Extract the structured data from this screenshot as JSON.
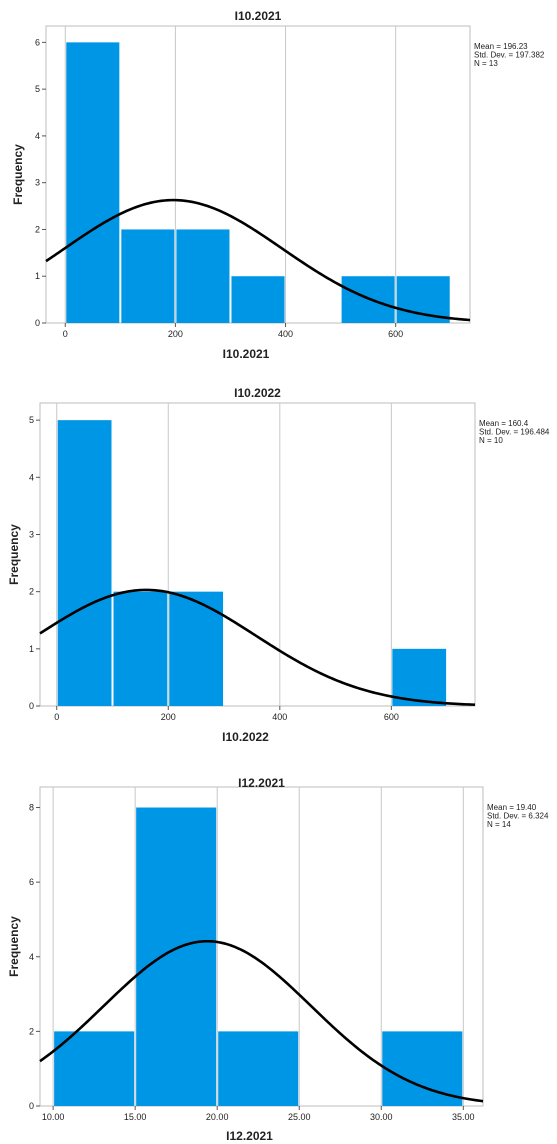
{
  "chart_data": [
    {
      "type": "histogram",
      "title": "I10.2021",
      "xlabel": "I10.2021",
      "ylabel": "Frequency",
      "xlim": [
        -35,
        735
      ],
      "ylim": [
        0,
        6.35
      ],
      "xticks": [
        0,
        200,
        400,
        600
      ],
      "xtick_labels": [
        "0",
        "200",
        "400",
        "600"
      ],
      "yticks": [
        0,
        1,
        2,
        3,
        4,
        5,
        6
      ],
      "ytick_labels": [
        "0",
        "1",
        "2",
        "3",
        "4",
        "5",
        "6"
      ],
      "bins": [
        {
          "start": 0,
          "end": 100,
          "count": 6
        },
        {
          "start": 100,
          "end": 200,
          "count": 2
        },
        {
          "start": 200,
          "end": 300,
          "count": 2
        },
        {
          "start": 300,
          "end": 400,
          "count": 1
        },
        {
          "start": 400,
          "end": 500,
          "count": 0
        },
        {
          "start": 500,
          "end": 600,
          "count": 1
        },
        {
          "start": 600,
          "end": 700,
          "count": 1
        }
      ],
      "normal_curve": {
        "mean": 196.23,
        "sd": 197.382,
        "n": 13,
        "bin_width": 100
      },
      "stats_lines": [
        "Mean = 196.23",
        "Std. Dev. = 197.382",
        "N = 13"
      ],
      "grid": true,
      "bar_color": "#0096e6",
      "curve_color": "#000000"
    },
    {
      "type": "histogram",
      "title": "I10.2022",
      "xlabel": "I10.2022",
      "ylabel": "Frequency",
      "xlim": [
        -30,
        750
      ],
      "ylim": [
        0,
        5.3
      ],
      "xticks": [
        0,
        200,
        400,
        600
      ],
      "xtick_labels": [
        "0",
        "200",
        "400",
        "600"
      ],
      "yticks": [
        0,
        1,
        2,
        3,
        4,
        5
      ],
      "ytick_labels": [
        "0",
        "1",
        "2",
        "3",
        "4",
        "5"
      ],
      "bins": [
        {
          "start": 0,
          "end": 100,
          "count": 5
        },
        {
          "start": 100,
          "end": 200,
          "count": 2
        },
        {
          "start": 200,
          "end": 300,
          "count": 2
        },
        {
          "start": 300,
          "end": 400,
          "count": 0
        },
        {
          "start": 400,
          "end": 500,
          "count": 0
        },
        {
          "start": 500,
          "end": 600,
          "count": 0
        },
        {
          "start": 600,
          "end": 700,
          "count": 1
        }
      ],
      "normal_curve": {
        "mean": 160.4,
        "sd": 196.484,
        "n": 10,
        "bin_width": 100
      },
      "stats_lines": [
        "Mean = 160.4",
        "Std. Dev. = 196.484",
        "N = 10"
      ],
      "grid": true,
      "bar_color": "#0096e6",
      "curve_color": "#000000"
    },
    {
      "type": "histogram",
      "title": "I12.2021",
      "xlabel": "I12.2021",
      "ylabel": "Frequency",
      "xlim": [
        9.2,
        36.2
      ],
      "ylim": [
        0,
        8.55
      ],
      "xticks": [
        10,
        15,
        20,
        25,
        30,
        35
      ],
      "xtick_labels": [
        "10.00",
        "15.00",
        "20.00",
        "25.00",
        "30.00",
        "35.00"
      ],
      "yticks": [
        0,
        2,
        4,
        6,
        8
      ],
      "ytick_labels": [
        "0",
        "2",
        "4",
        "6",
        "8"
      ],
      "bins": [
        {
          "start": 10,
          "end": 15,
          "count": 2
        },
        {
          "start": 15,
          "end": 20,
          "count": 8
        },
        {
          "start": 20,
          "end": 25,
          "count": 2
        },
        {
          "start": 25,
          "end": 30,
          "count": 0
        },
        {
          "start": 30,
          "end": 35,
          "count": 2
        }
      ],
      "normal_curve": {
        "mean": 19.4,
        "sd": 6.324,
        "n": 14,
        "bin_width": 5
      },
      "stats_lines": [
        "Mean = 19.40",
        "Std. Dev. = 6.324",
        "N = 14"
      ],
      "grid": true,
      "bar_color": "#0096e6",
      "curve_color": "#000000"
    }
  ]
}
